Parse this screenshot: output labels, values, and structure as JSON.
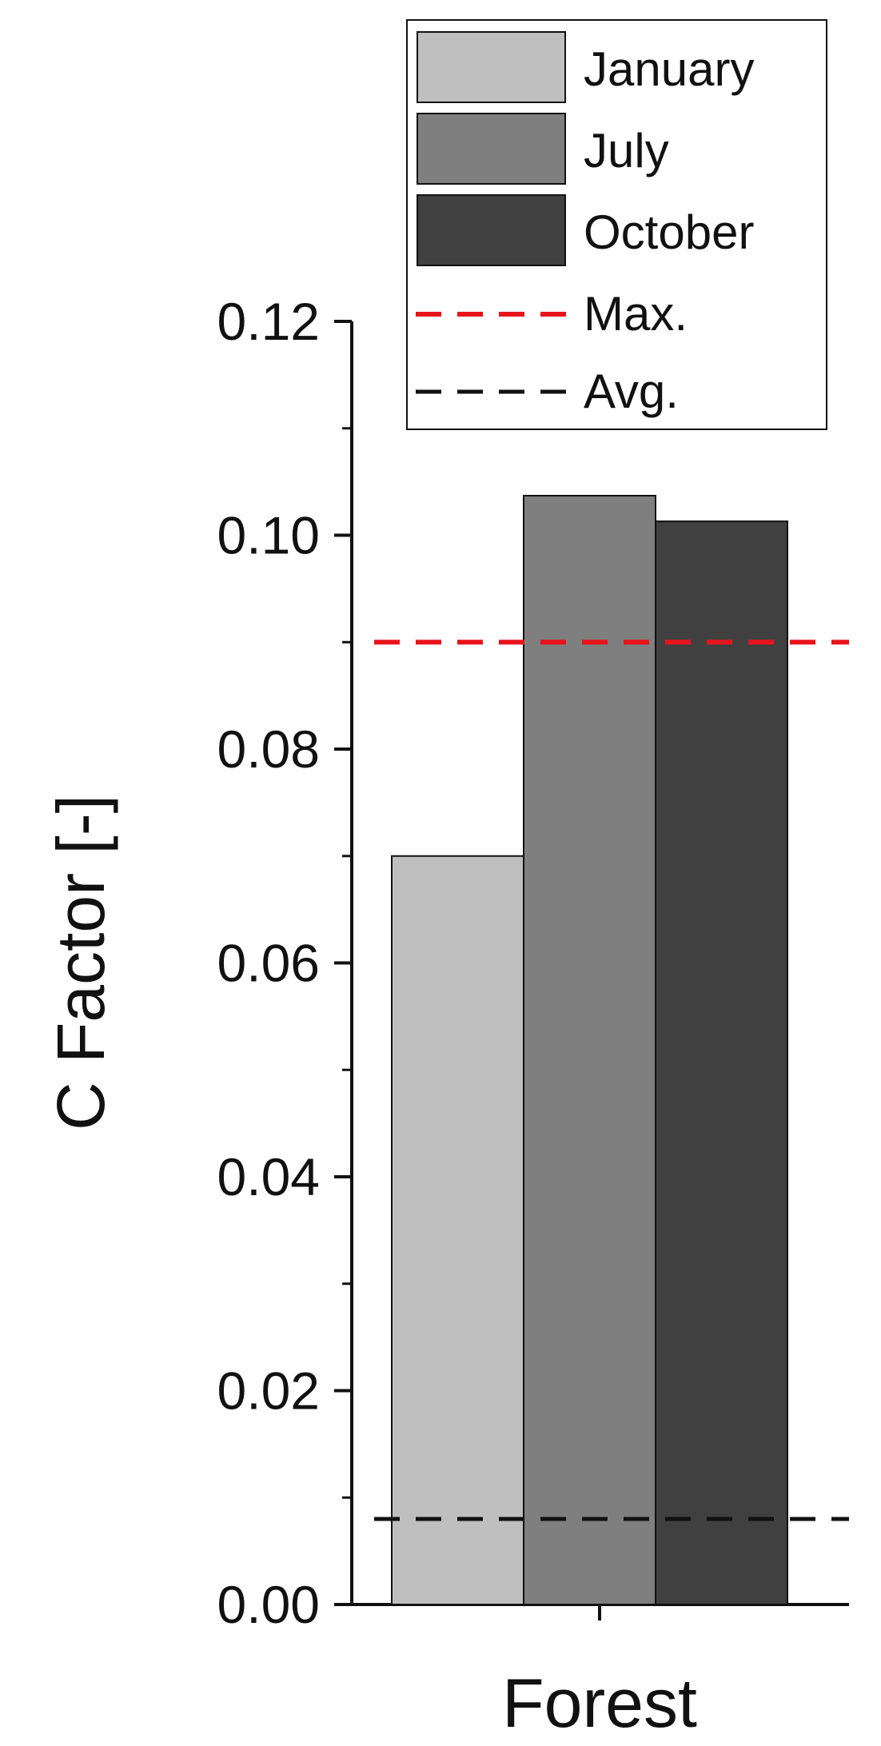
{
  "chart_data": {
    "type": "bar",
    "ylabel": "C Factor [-]",
    "categories": [
      "Forest"
    ],
    "series": [
      {
        "name": "January",
        "values": [
          0.07
        ],
        "color": "#bfbfbf"
      },
      {
        "name": "July",
        "values": [
          0.1037
        ],
        "color": "#7f7f7f"
      },
      {
        "name": "October",
        "values": [
          0.1013
        ],
        "color": "#404040"
      }
    ],
    "reference_lines": [
      {
        "name": "Max.",
        "value": 0.09,
        "color": "#e8141c",
        "style": "dashed"
      },
      {
        "name": "Avg.",
        "value": 0.008,
        "color": "#111111",
        "style": "dashed"
      }
    ],
    "ylim": [
      0,
      0.12
    ],
    "yticks": [
      "0.00",
      "0.02",
      "0.04",
      "0.06",
      "0.08",
      "0.10",
      "0.12"
    ],
    "ytick_values": [
      0,
      0.02,
      0.04,
      0.06,
      0.08,
      0.1,
      0.12
    ],
    "grid": false,
    "legend_position": "top-right"
  }
}
